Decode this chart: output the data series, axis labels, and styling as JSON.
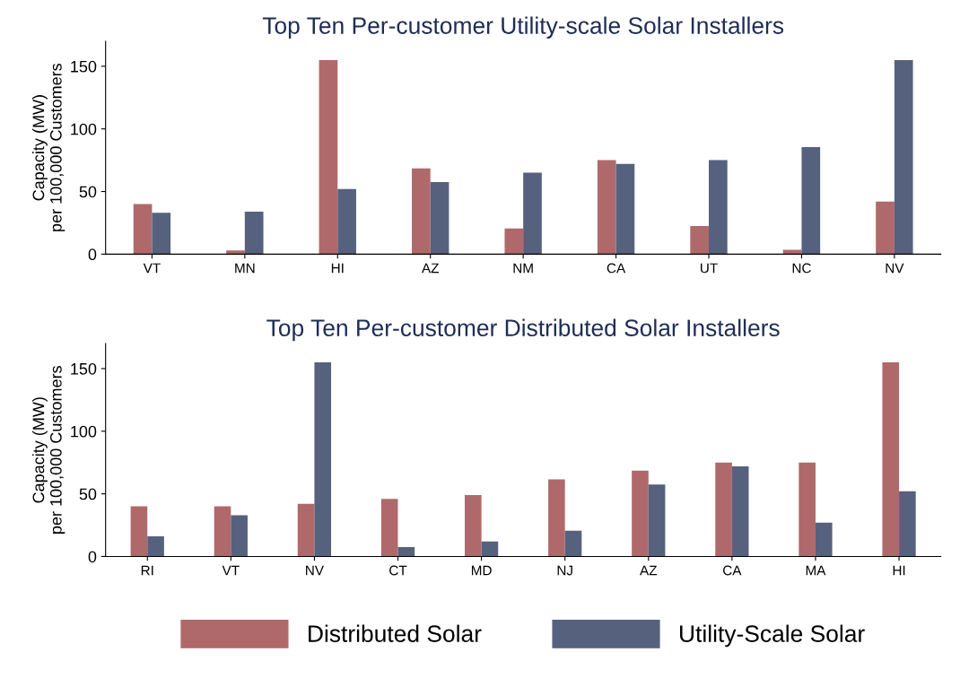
{
  "chart_data": [
    {
      "type": "bar",
      "title": "Top Ten Per-customer Utility-scale Solar Installers",
      "ylabel": "Capacity (MW)\nper 100,000 Customers",
      "categories": [
        "VT",
        "MN",
        "HI",
        "AZ",
        "NM",
        "CA",
        "UT",
        "NC",
        "NV"
      ],
      "series": [
        {
          "color": "#b0696b",
          "values": [
            40,
            3,
            155,
            68.5,
            20.5,
            75,
            22.5,
            3.5,
            42
          ]
        },
        {
          "color": "#56617e",
          "values": [
            33,
            34,
            52,
            57.5,
            65,
            72,
            75,
            85.5,
            155
          ]
        }
      ],
      "ylim": [
        0,
        170
      ],
      "yticks": [
        0,
        50,
        100,
        150
      ],
      "grid": false,
      "legend": false
    },
    {
      "type": "bar",
      "title": "Top Ten Per-customer Distributed Solar Installers",
      "ylabel": "Capacity (MW)\nper 100,000 Customers",
      "categories": [
        "RI",
        "VT",
        "NV",
        "CT",
        "MD",
        "NJ",
        "AZ",
        "CA",
        "MA",
        "HI"
      ],
      "series": [
        {
          "name": "Distributed Solar",
          "color": "#b0696b",
          "values": [
            40,
            40,
            42,
            46,
            49,
            61.5,
            68.5,
            75,
            75,
            155
          ]
        },
        {
          "name": "Utility-Scale Solar",
          "color": "#56617e",
          "values": [
            16,
            33,
            155,
            7.5,
            12,
            20.5,
            57.5,
            72,
            27,
            52
          ]
        }
      ],
      "ylim": [
        0,
        170
      ],
      "yticks": [
        0,
        50,
        100,
        150
      ],
      "grid": false,
      "legend": "bottom"
    }
  ]
}
